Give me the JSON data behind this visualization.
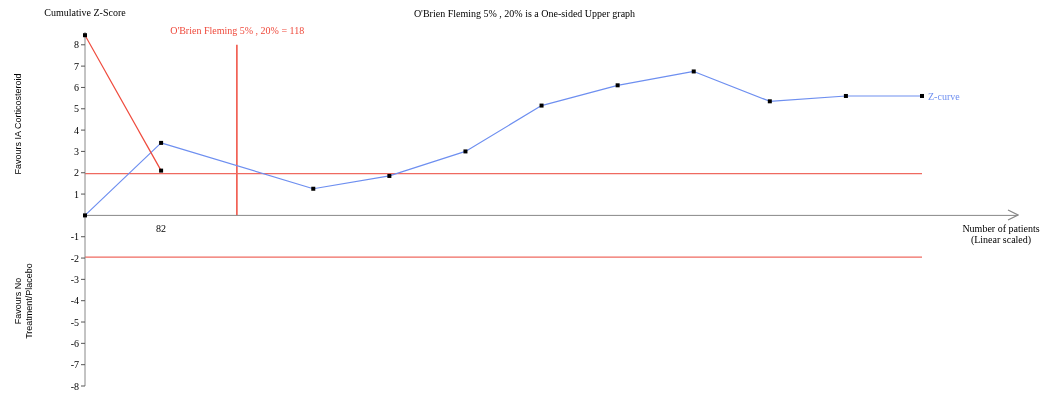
{
  "chart_data": {
    "type": "line",
    "title": "O'Brien Fleming 5% , 20% is a One-sided Upper graph",
    "xlabel": "Number of patients (Linear scaled)",
    "ylabel": "Cumulative Z-Score",
    "annotations": [
      "Favours IA Corticosteroid",
      "Favours No Treatment/Placebo"
    ],
    "categories": [
      null,
      "82",
      null,
      null,
      null,
      null,
      null,
      null,
      null,
      null,
      null,
      null
    ],
    "series": [
      {
        "name": "Z-curve",
        "color": "#6e8ff0",
        "values": [
          0,
          3.4,
          null,
          1.25,
          1.85,
          3.0,
          5.15,
          6.1,
          6.75,
          5.35,
          5.6,
          5.6
        ]
      },
      {
        "color": "#ef4a3c",
        "values": [
          8.45,
          2.1,
          null,
          null,
          null,
          null,
          null,
          null,
          null,
          null,
          null,
          null
        ]
      },
      {
        "name": "O'Brien Fleming 5% , 20% = 118",
        "type": "bar",
        "color": "#ef4a3c",
        "values": [
          null,
          null,
          8,
          null,
          null,
          null,
          null,
          null,
          null,
          null,
          null,
          null
        ]
      }
    ],
    "ref_lines": [
      {
        "axis": "y",
        "value": 1.96,
        "color": "#ef6a60"
      },
      {
        "axis": "y",
        "value": -1.96,
        "color": "#ef6a60"
      }
    ],
    "marker": "square",
    "line_style": "solid",
    "ylim": [
      -8,
      8.6
    ],
    "yticks": [
      -8,
      -7,
      -6,
      -5,
      -4,
      -3,
      -2,
      -1,
      1,
      2,
      3,
      4,
      5,
      6,
      7,
      8
    ]
  }
}
